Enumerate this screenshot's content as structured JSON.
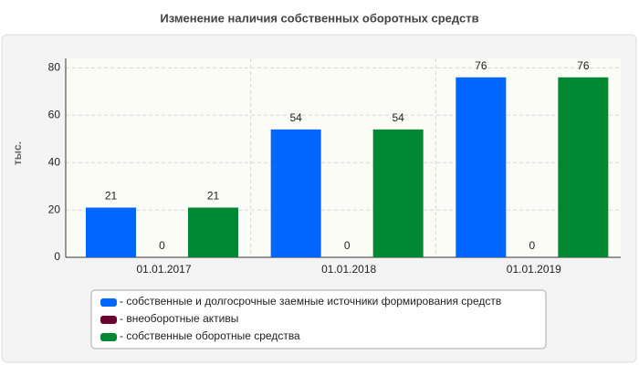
{
  "chart_data": {
    "type": "bar",
    "title": "Изменение наличия собственных оборотных средств",
    "y_label": "тыс.",
    "categories": [
      "01.01.2017",
      "01.01.2018",
      "01.01.2019"
    ],
    "series": [
      {
        "name": "- собственные и долгосрочные заемные источники формирования средств",
        "color": "#0066ff",
        "values": [
          21,
          54,
          76
        ]
      },
      {
        "name": "- внеоборотные активы",
        "color": "#6b0033",
        "values": [
          0,
          0,
          0
        ]
      },
      {
        "name": "- собственные оборотные средства",
        "color": "#008833",
        "values": [
          21,
          54,
          76
        ]
      }
    ],
    "ylim": [
      0,
      84
    ],
    "yticks": [
      0,
      20,
      40,
      60,
      80
    ],
    "grid": true,
    "legend": "bottom"
  }
}
